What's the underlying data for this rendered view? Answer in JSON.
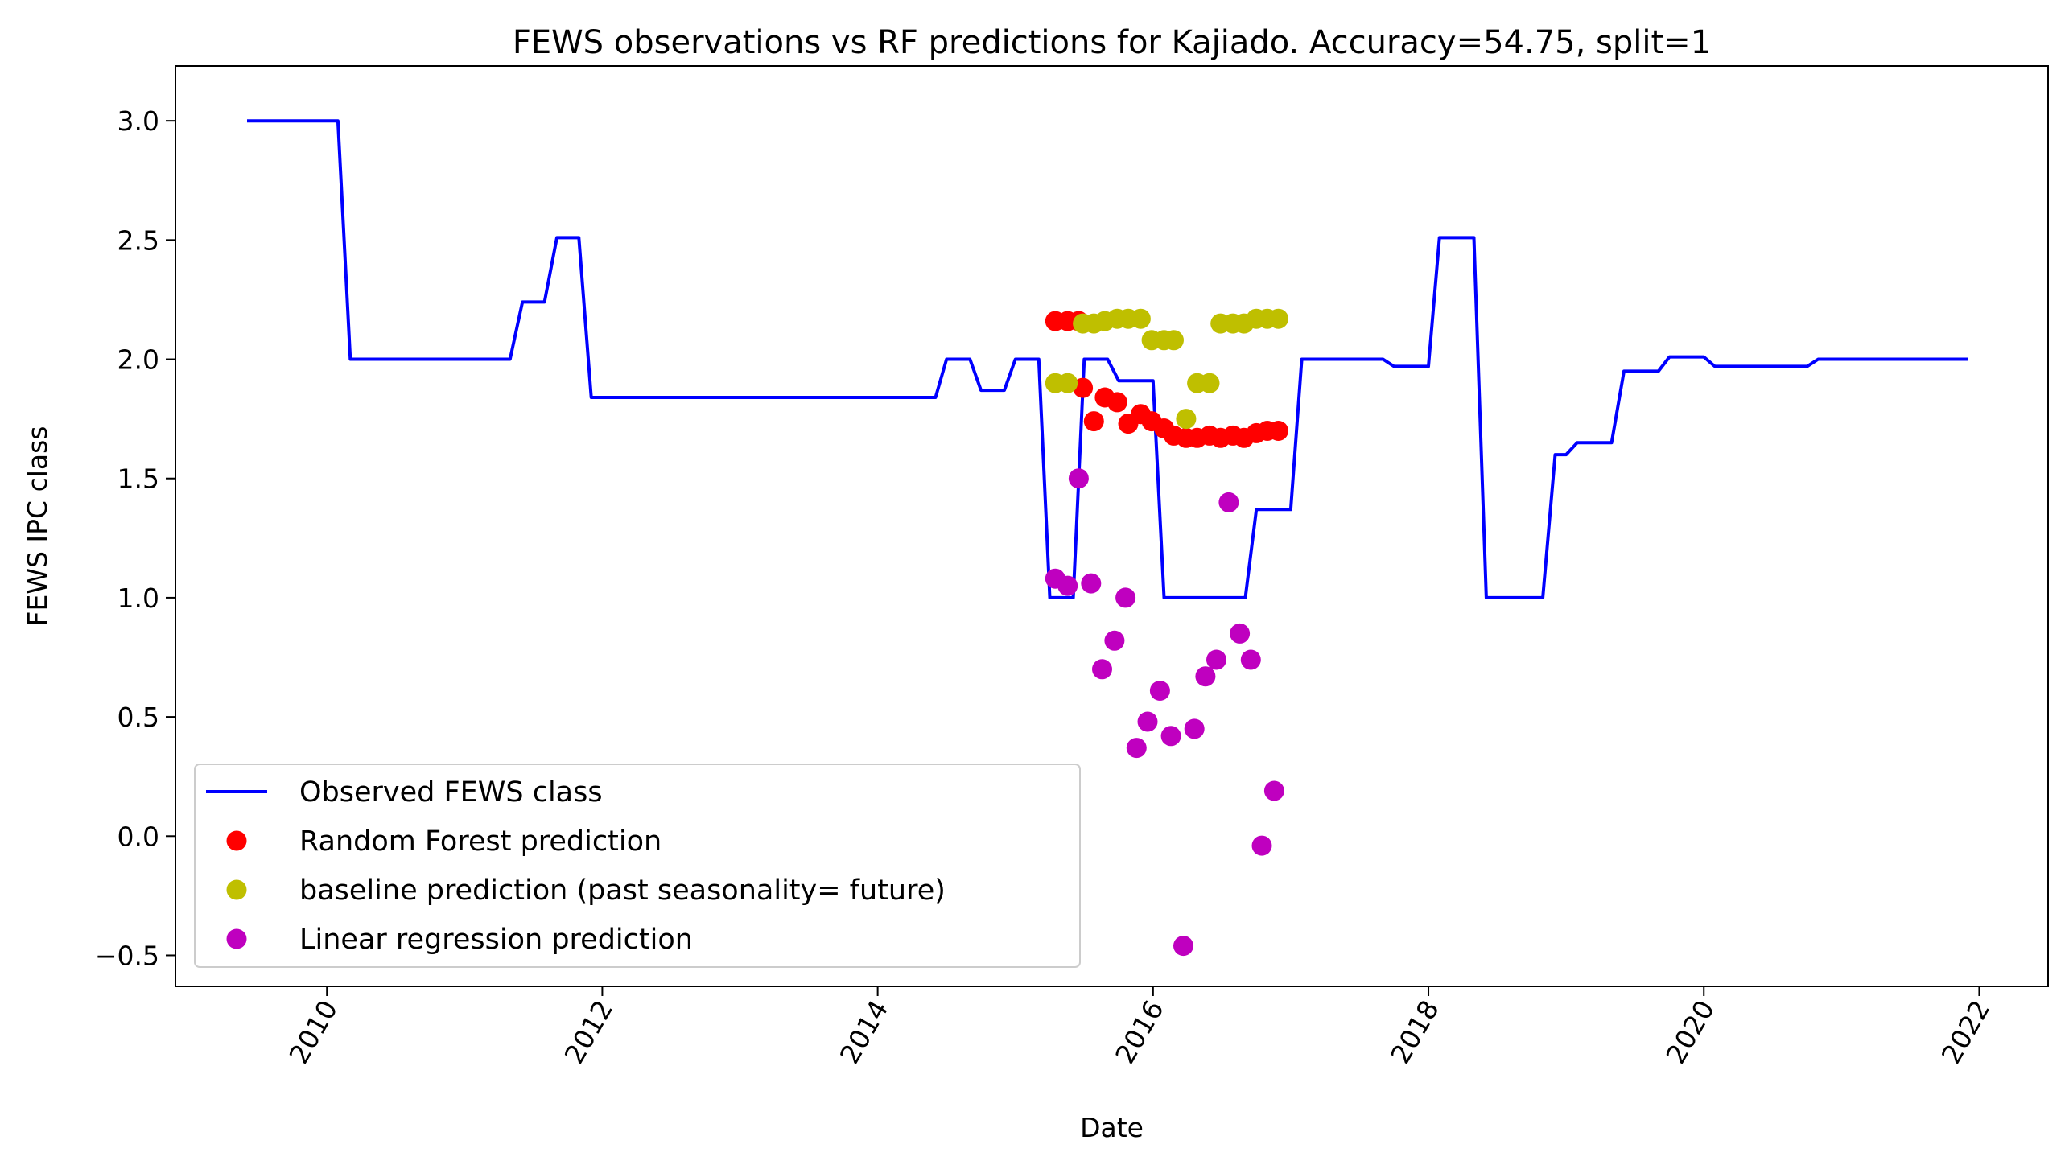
{
  "chart_data": {
    "type": "line",
    "title": "FEWS observations vs RF predictions for Kajiado. Accuracy=54.75, split=1",
    "xlabel": "Date",
    "ylabel": "FEWS IPC class",
    "xlim": [
      2008.9,
      2022.5
    ],
    "ylim": [
      -0.63,
      3.23
    ],
    "x_ticks": [
      2010,
      2012,
      2014,
      2016,
      2018,
      2020,
      2022
    ],
    "x_tick_labels": [
      "2010",
      "2012",
      "2014",
      "2016",
      "2018",
      "2020",
      "2022"
    ],
    "y_ticks": [
      -0.5,
      0.0,
      0.5,
      1.0,
      1.5,
      2.0,
      2.5,
      3.0
    ],
    "y_tick_labels": [
      "−0.5",
      "0.0",
      "0.5",
      "1.0",
      "1.5",
      "2.0",
      "2.5",
      "3.0"
    ],
    "legend_position": "lower-left",
    "series": [
      {
        "name": "Observed FEWS class",
        "kind": "line",
        "color": "#0000ff",
        "points": [
          [
            2009.42,
            3.0
          ],
          [
            2010.08,
            3.0
          ],
          [
            2010.17,
            2.0
          ],
          [
            2011.33,
            2.0
          ],
          [
            2011.42,
            2.24
          ],
          [
            2011.58,
            2.24
          ],
          [
            2011.67,
            2.51
          ],
          [
            2011.83,
            2.51
          ],
          [
            2011.92,
            1.84
          ],
          [
            2014.42,
            1.84
          ],
          [
            2014.5,
            2.0
          ],
          [
            2014.67,
            2.0
          ],
          [
            2014.75,
            1.87
          ],
          [
            2014.92,
            1.87
          ],
          [
            2015.0,
            2.0
          ],
          [
            2015.17,
            2.0
          ],
          [
            2015.25,
            1.0
          ],
          [
            2015.42,
            1.0
          ],
          [
            2015.5,
            2.0
          ],
          [
            2015.67,
            2.0
          ],
          [
            2015.75,
            1.91
          ],
          [
            2016.0,
            1.91
          ],
          [
            2016.08,
            1.0
          ],
          [
            2016.67,
            1.0
          ],
          [
            2016.75,
            1.37
          ],
          [
            2017.0,
            1.37
          ],
          [
            2017.08,
            2.0
          ],
          [
            2017.67,
            2.0
          ],
          [
            2017.75,
            1.97
          ],
          [
            2018.0,
            1.97
          ],
          [
            2018.08,
            2.51
          ],
          [
            2018.33,
            2.51
          ],
          [
            2018.42,
            1.0
          ],
          [
            2018.83,
            1.0
          ],
          [
            2018.92,
            1.6
          ],
          [
            2019.0,
            1.6
          ],
          [
            2019.08,
            1.65
          ],
          [
            2019.33,
            1.65
          ],
          [
            2019.42,
            1.95
          ],
          [
            2019.67,
            1.95
          ],
          [
            2019.75,
            2.01
          ],
          [
            2020.0,
            2.01
          ],
          [
            2020.08,
            1.97
          ],
          [
            2020.75,
            1.97
          ],
          [
            2020.83,
            2.0
          ],
          [
            2021.92,
            2.0
          ]
        ]
      },
      {
        "name": "Random Forest prediction",
        "kind": "scatter",
        "color": "#ff0000",
        "points": [
          [
            2015.29,
            2.16
          ],
          [
            2015.38,
            2.16
          ],
          [
            2015.46,
            2.16
          ],
          [
            2015.49,
            1.88
          ],
          [
            2015.57,
            1.74
          ],
          [
            2015.65,
            1.84
          ],
          [
            2015.74,
            1.82
          ],
          [
            2015.82,
            1.73
          ],
          [
            2015.91,
            1.77
          ],
          [
            2015.99,
            1.74
          ],
          [
            2016.08,
            1.71
          ],
          [
            2016.15,
            1.68
          ],
          [
            2016.24,
            1.67
          ],
          [
            2016.32,
            1.67
          ],
          [
            2016.41,
            1.68
          ],
          [
            2016.49,
            1.67
          ],
          [
            2016.58,
            1.68
          ],
          [
            2016.66,
            1.67
          ],
          [
            2016.75,
            1.69
          ],
          [
            2016.83,
            1.7
          ],
          [
            2016.91,
            1.7
          ]
        ]
      },
      {
        "name": "baseline prediction (past seasonality= future)",
        "kind": "scatter",
        "color": "#bfbf00",
        "points": [
          [
            2015.29,
            1.9
          ],
          [
            2015.38,
            1.9
          ],
          [
            2015.49,
            2.15
          ],
          [
            2015.57,
            2.15
          ],
          [
            2015.65,
            2.16
          ],
          [
            2015.74,
            2.17
          ],
          [
            2015.82,
            2.17
          ],
          [
            2015.91,
            2.17
          ],
          [
            2015.99,
            2.08
          ],
          [
            2016.08,
            2.08
          ],
          [
            2016.15,
            2.08
          ],
          [
            2016.24,
            1.75
          ],
          [
            2016.32,
            1.9
          ],
          [
            2016.41,
            1.9
          ],
          [
            2016.49,
            2.15
          ],
          [
            2016.58,
            2.15
          ],
          [
            2016.66,
            2.15
          ],
          [
            2016.75,
            2.17
          ],
          [
            2016.83,
            2.17
          ],
          [
            2016.91,
            2.17
          ]
        ]
      },
      {
        "name": "Linear regression prediction",
        "kind": "scatter",
        "color": "#bf00bf",
        "points": [
          [
            2015.29,
            1.08
          ],
          [
            2015.38,
            1.05
          ],
          [
            2015.46,
            1.5
          ],
          [
            2015.55,
            1.06
          ],
          [
            2015.63,
            0.7
          ],
          [
            2015.72,
            0.82
          ],
          [
            2015.8,
            1.0
          ],
          [
            2015.88,
            0.37
          ],
          [
            2015.96,
            0.48
          ],
          [
            2016.05,
            0.61
          ],
          [
            2016.13,
            0.42
          ],
          [
            2016.22,
            -0.46
          ],
          [
            2016.3,
            0.45
          ],
          [
            2016.38,
            0.67
          ],
          [
            2016.46,
            0.74
          ],
          [
            2016.55,
            1.4
          ],
          [
            2016.63,
            0.85
          ],
          [
            2016.71,
            0.74
          ],
          [
            2016.79,
            -0.04
          ],
          [
            2016.88,
            0.19
          ]
        ]
      }
    ]
  }
}
